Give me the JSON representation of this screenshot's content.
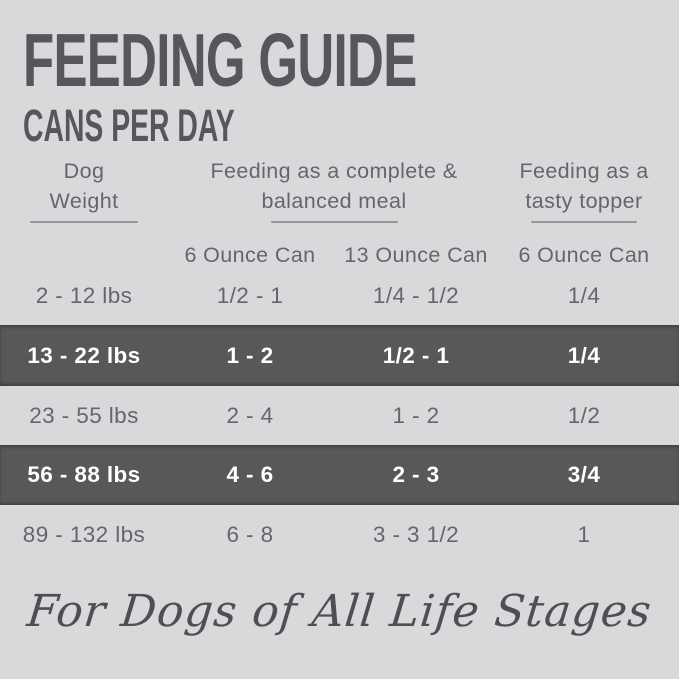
{
  "title": "FEEDING GUIDE",
  "subtitle": "CANS PER DAY",
  "table": {
    "col_groups": [
      {
        "line1": "Dog",
        "line2": "Weight"
      },
      {
        "line1": "Feeding as a complete &",
        "line2": "balanced meal"
      },
      {
        "line1": "Feeding as a",
        "line2": "tasty topper"
      }
    ],
    "sub_headers": [
      "6 Ounce Can",
      "13 Ounce Can",
      "6 Ounce Can"
    ],
    "rows": [
      {
        "weight": "2 - 12 lbs",
        "meal_6oz": "1/2 - 1",
        "meal_13oz": "1/4 - 1/2",
        "topper_6oz": "1/4",
        "highlight": false
      },
      {
        "weight": "13 - 22 lbs",
        "meal_6oz": "1 - 2",
        "meal_13oz": "1/2 - 1",
        "topper_6oz": "1/4",
        "highlight": true
      },
      {
        "weight": "23 - 55 lbs",
        "meal_6oz": "2 - 4",
        "meal_13oz": "1 - 2",
        "topper_6oz": "1/2",
        "highlight": false
      },
      {
        "weight": "56 - 88 lbs",
        "meal_6oz": "4 - 6",
        "meal_13oz": "2 - 3",
        "topper_6oz": "3/4",
        "highlight": true
      },
      {
        "weight": "89 - 132 lbs",
        "meal_6oz": "6 - 8",
        "meal_13oz": "3 - 3 1/2",
        "topper_6oz": "1",
        "highlight": false
      }
    ]
  },
  "footer": {
    "text": "For Dogs of All Life Stages"
  },
  "colors": {
    "background": "#d8d9da",
    "band": "#58585a",
    "title": "#56575a",
    "text": "#64666b",
    "band_text": "#ffffff",
    "underline": "#97989b",
    "footer_text": "#4e4f52"
  }
}
